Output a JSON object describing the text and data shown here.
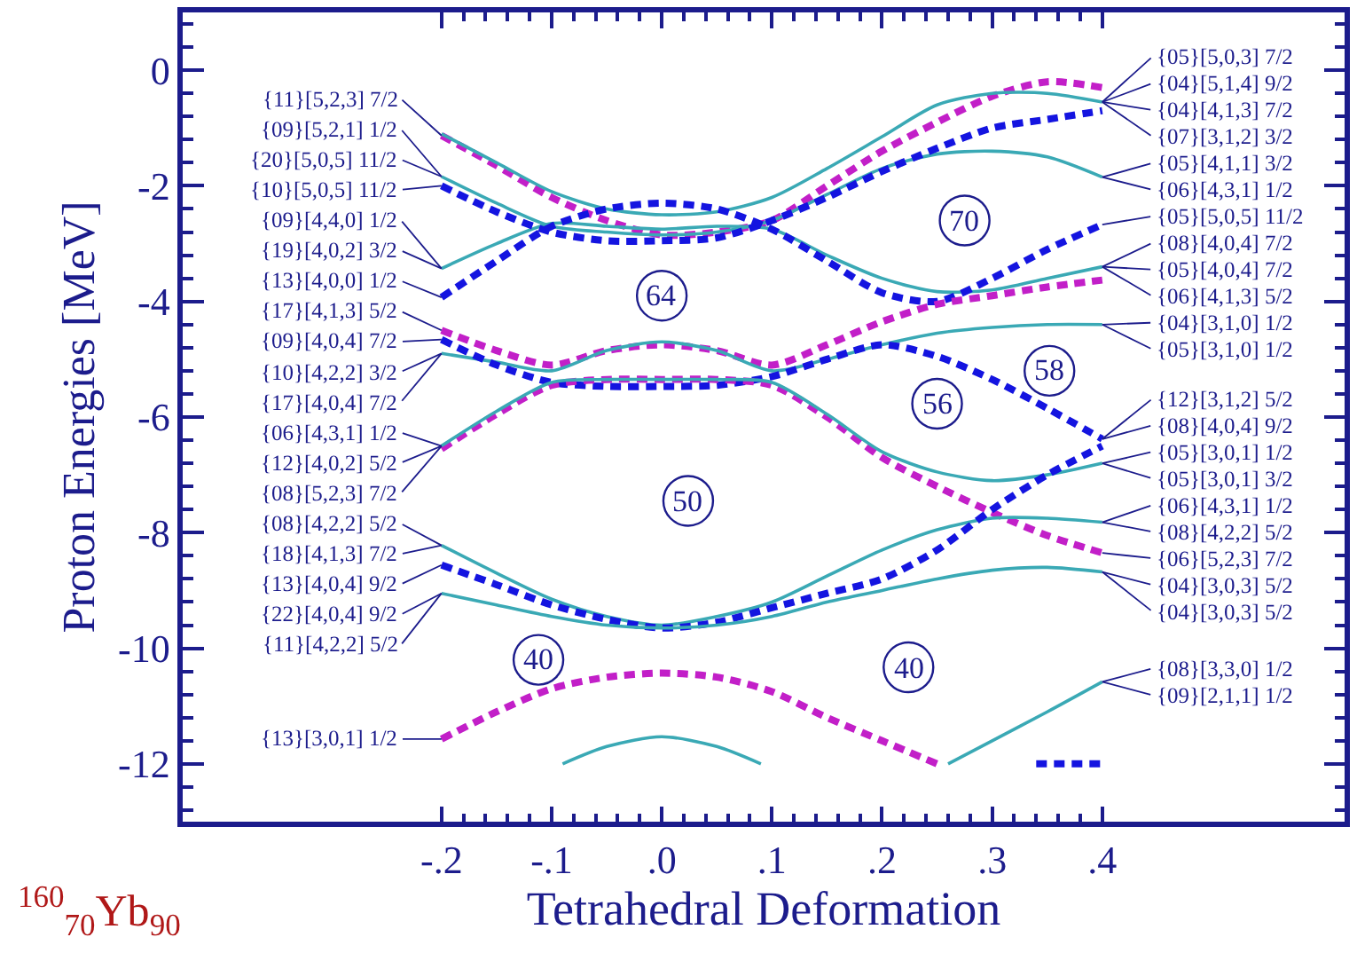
{
  "chart_data": {
    "type": "line",
    "xlabel": "Tetrahedral Deformation",
    "ylabel": "Proton Energies [MeV]",
    "xlim": [
      -0.435,
      0.62
    ],
    "ylim": [
      -13,
      1
    ],
    "xticks": [
      {
        "value": -0.2,
        "label": "-.2"
      },
      {
        "value": -0.1,
        "label": "-.1"
      },
      {
        "value": 0,
        "label": ".0"
      },
      {
        "value": 0.1,
        "label": ".1"
      },
      {
        "value": 0.2,
        "label": ".2"
      },
      {
        "value": 0.3,
        "label": ".3"
      },
      {
        "value": 0.4,
        "label": ".4"
      },
      {
        "value": -0.18,
        "label": null
      },
      {
        "value": -0.16,
        "label": null
      },
      {
        "value": -0.14,
        "label": null
      },
      {
        "value": -0.12,
        "label": null
      },
      {
        "value": -0.08,
        "label": null
      },
      {
        "value": -0.06,
        "label": null
      },
      {
        "value": -0.04,
        "label": null
      },
      {
        "value": -0.02,
        "label": null
      },
      {
        "value": 0.02,
        "label": null
      },
      {
        "value": 0.04,
        "label": null
      },
      {
        "value": 0.06,
        "label": null
      },
      {
        "value": 0.08,
        "label": null
      },
      {
        "value": 0.12,
        "label": null
      },
      {
        "value": 0.14,
        "label": null
      },
      {
        "value": 0.16,
        "label": null
      },
      {
        "value": 0.18,
        "label": null
      },
      {
        "value": 0.22,
        "label": null
      },
      {
        "value": 0.24,
        "label": null
      },
      {
        "value": 0.26,
        "label": null
      },
      {
        "value": 0.28,
        "label": null
      },
      {
        "value": 0.32,
        "label": null
      },
      {
        "value": 0.34,
        "label": null
      },
      {
        "value": 0.36,
        "label": null
      },
      {
        "value": 0.38,
        "label": null
      }
    ],
    "yticks": [
      0,
      -2,
      -4,
      -6,
      -8,
      -10,
      -12,
      {
        "value": -0.4,
        "label": null
      },
      {
        "value": -0.8,
        "label": null
      },
      {
        "value": -1.2,
        "label": null
      },
      {
        "value": -1.6,
        "label": null
      },
      {
        "value": -2.4,
        "label": null
      },
      {
        "value": -2.8,
        "label": null
      },
      {
        "value": -3.2,
        "label": null
      },
      {
        "value": -3.6,
        "label": null
      },
      {
        "value": -4.4,
        "label": null
      },
      {
        "value": -4.8,
        "label": null
      },
      {
        "value": -5.2,
        "label": null
      },
      {
        "value": -5.6,
        "label": null
      },
      {
        "value": -6.4,
        "label": null
      },
      {
        "value": -6.8,
        "label": null
      },
      {
        "value": -7.2,
        "label": null
      },
      {
        "value": -7.6,
        "label": null
      },
      {
        "value": -8.4,
        "label": null
      },
      {
        "value": -8.8,
        "label": null
      },
      {
        "value": -9.2,
        "label": null
      },
      {
        "value": -9.6,
        "label": null
      },
      {
        "value": -10.4,
        "label": null
      },
      {
        "value": -10.8,
        "label": null
      },
      {
        "value": -11.2,
        "label": null
      },
      {
        "value": -11.6,
        "label": null
      },
      {
        "value": -12.4,
        "label": null
      },
      {
        "value": -12.8,
        "label": null
      },
      {
        "value": 0.4,
        "label": null
      },
      {
        "value": 0.8,
        "label": null
      }
    ],
    "grid": false,
    "legend": false,
    "marker": "none",
    "x": [
      -0.2,
      -0.15,
      -0.1,
      -0.05,
      0,
      0.05,
      0.1,
      0.15,
      0.2,
      0.25,
      0.3,
      0.35,
      0.4
    ],
    "series": [
      {
        "color": "#c21fc8",
        "line_style": "dashed",
        "values": [
          -1.13,
          -1.65,
          -2.2,
          -2.6,
          -2.85,
          -2.8,
          -2.6,
          -2.0,
          -1.4,
          -0.9,
          -0.45,
          -0.2,
          -0.3
        ]
      },
      {
        "color": "#3aa9b5",
        "line_style": "solid",
        "values": [
          -1.1,
          -1.6,
          -2.1,
          -2.4,
          -2.5,
          -2.45,
          -2.2,
          -1.7,
          -1.15,
          -0.6,
          -0.4,
          -0.4,
          -0.55
        ]
      },
      {
        "color": "#3aa9b5",
        "line_style": "solid",
        "values": [
          -1.84,
          -2.3,
          -2.7,
          -2.8,
          -2.85,
          -2.8,
          -2.6,
          -2.15,
          -1.7,
          -1.45,
          -1.4,
          -1.5,
          -1.85
        ]
      },
      {
        "color": "#3aa9b5",
        "line_style": "solid",
        "values": [
          -3.43,
          -3.0,
          -2.65,
          -2.7,
          -2.75,
          -2.7,
          -2.75,
          -3.2,
          -3.6,
          -3.83,
          -3.8,
          -3.6,
          -3.4
        ]
      },
      {
        "color": "#1414e0",
        "line_style": "dashed",
        "values": [
          -2.0,
          -2.45,
          -2.8,
          -2.95,
          -2.95,
          -2.9,
          -2.6,
          -2.2,
          -1.75,
          -1.35,
          -1.0,
          -0.85,
          -0.7
        ]
      },
      {
        "color": "#1414e0",
        "line_style": "dashed",
        "values": [
          -3.93,
          -3.3,
          -2.7,
          -2.4,
          -2.3,
          -2.4,
          -2.75,
          -3.3,
          -3.85,
          -4.0,
          -3.6,
          -3.1,
          -2.67
        ]
      },
      {
        "color": "#c21fc8",
        "line_style": "dashed",
        "values": [
          -4.5,
          -4.85,
          -5.1,
          -4.85,
          -4.75,
          -4.85,
          -5.1,
          -4.75,
          -4.35,
          -4.05,
          -3.9,
          -3.75,
          -3.63
        ]
      },
      {
        "color": "#3aa9b5",
        "line_style": "solid",
        "values": [
          -4.9,
          -5.05,
          -5.2,
          -4.85,
          -4.7,
          -4.85,
          -5.2,
          -5.0,
          -4.75,
          -4.55,
          -4.45,
          -4.4,
          -4.4
        ]
      },
      {
        "color": "#1414e0",
        "line_style": "dashed",
        "values": [
          -4.66,
          -5.1,
          -5.4,
          -5.47,
          -5.47,
          -5.45,
          -5.3,
          -5.0,
          -4.75,
          -4.95,
          -5.35,
          -5.85,
          -6.38
        ]
      },
      {
        "color": "#c21fc8",
        "line_style": "dashed",
        "values": [
          -6.55,
          -5.95,
          -5.45,
          -5.35,
          -5.35,
          -5.35,
          -5.45,
          -6.0,
          -6.7,
          -7.2,
          -7.65,
          -8.05,
          -8.35
        ]
      },
      {
        "color": "#3aa9b5",
        "line_style": "solid",
        "values": [
          -6.5,
          -5.9,
          -5.4,
          -5.35,
          -5.35,
          -5.35,
          -5.4,
          -5.95,
          -6.6,
          -6.95,
          -7.1,
          -7.0,
          -6.8
        ]
      },
      {
        "color": "#3aa9b5",
        "line_style": "solid",
        "values": [
          -8.22,
          -8.7,
          -9.15,
          -9.45,
          -9.6,
          -9.45,
          -9.2,
          -8.75,
          -8.3,
          -7.95,
          -7.75,
          -7.75,
          -7.82
        ]
      },
      {
        "color": "#1414e0",
        "line_style": "dashed",
        "values": [
          -8.56,
          -8.9,
          -9.25,
          -9.5,
          -9.65,
          -9.55,
          -9.3,
          -9.05,
          -8.8,
          -8.3,
          -7.6,
          -7.0,
          -6.5
        ]
      },
      {
        "color": "#3aa9b5",
        "line_style": "solid",
        "values": [
          -9.05,
          -9.25,
          -9.45,
          -9.6,
          -9.65,
          -9.6,
          -9.45,
          -9.2,
          -9.0,
          -8.8,
          -8.65,
          -8.6,
          -8.68
        ]
      },
      {
        "color": "#c21fc8",
        "line_style": "dashed",
        "x": [
          -0.2,
          -0.15,
          -0.1,
          -0.05,
          0,
          0.05,
          0.1,
          0.15,
          0.2,
          0.25
        ],
        "values": [
          -11.57,
          -11.1,
          -10.7,
          -10.5,
          -10.43,
          -10.5,
          -10.75,
          -11.2,
          -11.6,
          -12.0
        ]
      },
      {
        "color": "#3aa9b5",
        "line_style": "solid",
        "x": [
          -0.09,
          -0.05,
          0,
          0.05,
          0.09
        ],
        "values": [
          -12.0,
          -11.7,
          -11.53,
          -11.7,
          -12.0
        ]
      },
      {
        "color": "#3aa9b5",
        "line_style": "solid",
        "x": [
          0.26,
          0.3,
          0.35,
          0.4
        ],
        "values": [
          -12.0,
          -11.6,
          -11.1,
          -10.58
        ]
      },
      {
        "color": "#1414e0",
        "line_style": "dashed",
        "x": [
          0.34,
          0.4
        ],
        "values": [
          -12.0,
          -12.0
        ]
      }
    ],
    "annotations": [
      {
        "text": "{11}[5,2,3] 7/2",
        "x": -0.2,
        "y": -1.13
      },
      {
        "text": "{09}[5,2,1] 1/2",
        "x": -0.2,
        "y": -1.84
      },
      {
        "text": "{20}[5,0,5] 11/2",
        "x": -0.2,
        "y": -1.84
      },
      {
        "text": "{10}[5,0,5] 11/2",
        "x": -0.2,
        "y": -2.0
      },
      {
        "text": "{09}[4,4,0] 1/2",
        "x": -0.2,
        "y": -3.43
      },
      {
        "text": "{19}[4,0,2] 3/2",
        "x": -0.2,
        "y": -3.43
      },
      {
        "text": "{13}[4,0,0] 1/2",
        "x": -0.2,
        "y": -3.93
      },
      {
        "text": "{17}[4,1,3] 5/2",
        "x": -0.2,
        "y": -4.5
      },
      {
        "text": "{09}[4,0,4] 7/2",
        "x": -0.2,
        "y": -4.66
      },
      {
        "text": "{10}[4,2,2] 3/2",
        "x": -0.2,
        "y": -4.9
      },
      {
        "text": "{17}[4,0,4] 7/2",
        "x": -0.2,
        "y": -4.9
      },
      {
        "text": "{06}[4,3,1] 1/2",
        "x": -0.2,
        "y": -6.5
      },
      {
        "text": "{12}[4,0,2] 5/2",
        "x": -0.2,
        "y": -6.5
      },
      {
        "text": "{08}[5,2,3] 7/2",
        "x": -0.2,
        "y": -6.5
      },
      {
        "text": "{08}[4,2,2] 5/2",
        "x": -0.2,
        "y": -8.22
      },
      {
        "text": "{18}[4,1,3] 7/2",
        "x": -0.2,
        "y": -8.22
      },
      {
        "text": "{13}[4,0,4] 9/2",
        "x": -0.2,
        "y": -8.56
      },
      {
        "text": "{22}[4,0,4] 9/2",
        "x": -0.2,
        "y": -9.05
      },
      {
        "text": "{11}[4,2,2] 5/2",
        "x": -0.2,
        "y": -9.05
      },
      {
        "text": "{13}[3,0,1] 1/2",
        "x": -0.2,
        "y": -11.57
      },
      {
        "text": "{05}[5,0,3] 7/2",
        "x": 0.4,
        "y": -0.55
      },
      {
        "text": "{04}[5,1,4] 9/2",
        "x": 0.4,
        "y": -0.55
      },
      {
        "text": "{04}[4,1,3] 7/2",
        "x": 0.4,
        "y": -0.55
      },
      {
        "text": "{07}[3,1,2] 3/2",
        "x": 0.4,
        "y": -0.55
      },
      {
        "text": "{05}[4,1,1] 3/2",
        "x": 0.4,
        "y": -1.85
      },
      {
        "text": "{06}[4,3,1] 1/2",
        "x": 0.4,
        "y": -1.85
      },
      {
        "text": "{05}[5,0,5] 11/2",
        "x": 0.4,
        "y": -2.67
      },
      {
        "text": "{08}[4,0,4] 7/2",
        "x": 0.4,
        "y": -3.4
      },
      {
        "text": "{05}[4,0,4] 7/2",
        "x": 0.4,
        "y": -3.4
      },
      {
        "text": "{06}[4,1,3] 5/2",
        "x": 0.4,
        "y": -3.4
      },
      {
        "text": "{04}[3,1,0] 1/2",
        "x": 0.4,
        "y": -4.4
      },
      {
        "text": "{05}[3,1,0] 1/2",
        "x": 0.4,
        "y": -4.4
      },
      {
        "text": "{12}[3,1,2] 5/2",
        "x": 0.4,
        "y": -6.38
      },
      {
        "text": "{08}[4,0,4] 9/2",
        "x": 0.4,
        "y": -6.38
      },
      {
        "text": "{05}[3,0,1] 1/2",
        "x": 0.4,
        "y": -6.8
      },
      {
        "text": "{05}[3,0,1] 3/2",
        "x": 0.4,
        "y": -6.8
      },
      {
        "text": "{06}[4,3,1] 1/2",
        "x": 0.4,
        "y": -7.82
      },
      {
        "text": "{08}[4,2,2] 5/2",
        "x": 0.4,
        "y": -7.82
      },
      {
        "text": "{06}[5,2,3] 7/2",
        "x": 0.4,
        "y": -8.35
      },
      {
        "text": "{04}[3,0,3] 5/2",
        "x": 0.4,
        "y": -8.68
      },
      {
        "text": "{04}[3,0,3] 5/2",
        "x": 0.4,
        "y": -8.68
      },
      {
        "text": "{08}[3,3,0] 1/2",
        "x": 0.4,
        "y": -10.58
      },
      {
        "text": "{09}[2,1,1] 1/2",
        "x": 0.4,
        "y": -10.58
      },
      {
        "text": "64",
        "x": 0.0,
        "y": -3.9
      },
      {
        "text": "70",
        "x": 0.275,
        "y": -2.6
      },
      {
        "text": "58",
        "x": 0.352,
        "y": -5.2
      },
      {
        "text": "56",
        "x": 0.25,
        "y": -5.77
      },
      {
        "text": "50",
        "x": 0.024,
        "y": -7.45
      },
      {
        "text": "40",
        "x": -0.112,
        "y": -10.2
      },
      {
        "text": "40",
        "x": 0.224,
        "y": -10.33
      },
      "$^{160}$$_{70}$Yb$_{90}$"
    ]
  }
}
